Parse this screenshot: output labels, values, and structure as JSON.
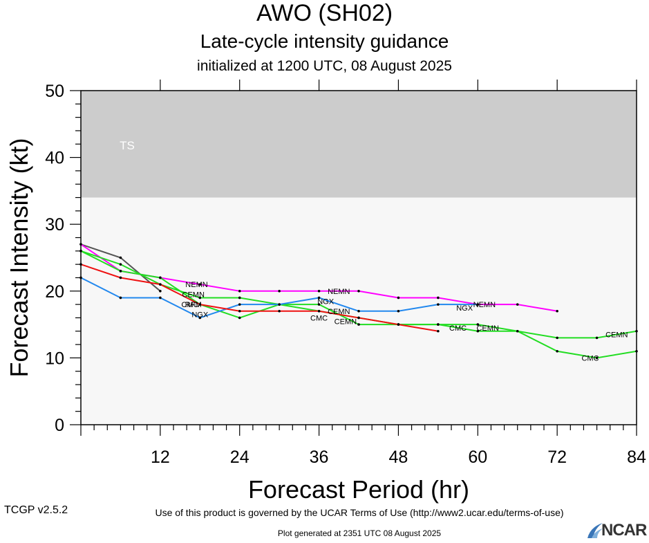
{
  "header": {
    "title": "AWO (SH02)",
    "subtitle": "Late-cycle intensity guidance",
    "init_line": "initialized at 1200 UTC, 08 August 2025"
  },
  "footer": {
    "terms": "Use of this product is governed by the UCAR Terms of Use (http://www2.ucar.edu/terms-of-use)",
    "generated": "Plot generated at 2351 UTC   08 August 2025",
    "version": "TCGP v2.5.2",
    "logo": "NCAR"
  },
  "chart_data": {
    "type": "line",
    "xlabel": "Forecast Period (hr)",
    "ylabel": "Forecast Intensity (kt)",
    "xlim": [
      0,
      84
    ],
    "ylim": [
      0,
      50
    ],
    "xticks": [
      12,
      24,
      36,
      48,
      60,
      72,
      84
    ],
    "yticks": [
      0,
      10,
      20,
      30,
      40,
      50
    ],
    "bands": [
      {
        "label": "TS",
        "from": 34,
        "to": 50,
        "color": "#cccccc"
      }
    ],
    "plot_background": "#f7f7f7",
    "series": [
      {
        "name": "",
        "color": "#555555",
        "x": [
          0,
          6,
          12
        ],
        "y": [
          27,
          25,
          20
        ]
      },
      {
        "name": "NEMN",
        "color": "#ff00ff",
        "x": [
          0,
          6,
          12,
          18,
          24,
          30,
          36,
          42,
          48,
          54,
          60,
          66,
          72
        ],
        "y": [
          27,
          23,
          22,
          21,
          20,
          20,
          20,
          20,
          19,
          19,
          18,
          18,
          17
        ]
      },
      {
        "name": "CEMN",
        "color": "#22dd22",
        "x": [
          0,
          6,
          12,
          18,
          24,
          30,
          36,
          42,
          48,
          54,
          60,
          66,
          72,
          78,
          84
        ],
        "y": [
          26,
          24,
          21,
          19,
          19,
          18,
          17,
          16,
          15,
          15,
          15,
          14,
          13,
          13,
          14
        ]
      },
      {
        "name": "CMC",
        "color": "#22dd22",
        "x": [
          0,
          6,
          12,
          18,
          24,
          30,
          36,
          42,
          48,
          54,
          60,
          66,
          72,
          78,
          84
        ],
        "y": [
          26,
          23,
          22,
          18,
          16,
          18,
          18,
          15,
          15,
          15,
          14,
          14,
          11,
          10,
          11
        ]
      },
      {
        "name": "NGX",
        "color": "#2288ee",
        "x": [
          0,
          6,
          12,
          18,
          24,
          30,
          36,
          42,
          48,
          54,
          60
        ],
        "y": [
          22,
          19,
          19,
          16,
          18,
          18,
          19,
          17,
          17,
          18,
          18
        ]
      },
      {
        "name": "",
        "color": "#ee1111",
        "x": [
          0,
          6,
          12,
          18,
          24,
          30,
          36,
          42,
          48,
          54
        ],
        "y": [
          24,
          22,
          21,
          18,
          17,
          17,
          17,
          16,
          15,
          14
        ]
      }
    ],
    "labels": [
      {
        "text": "NEMN",
        "x": 17.5,
        "y": 21
      },
      {
        "text": "NEMN",
        "x": 39,
        "y": 20
      },
      {
        "text": "NEMN",
        "x": 61,
        "y": 18
      },
      {
        "text": "CEMN",
        "x": 17,
        "y": 19.5
      },
      {
        "text": "CEMN",
        "x": 39,
        "y": 17
      },
      {
        "text": "CEMN",
        "x": 61.5,
        "y": 14.5
      },
      {
        "text": "CEMN",
        "x": 81,
        "y": 13.5
      },
      {
        "text": "CEMN",
        "x": 40,
        "y": 15.5
      },
      {
        "text": "CMC",
        "x": 16.5,
        "y": 18
      },
      {
        "text": "CMC",
        "x": 36,
        "y": 16
      },
      {
        "text": "CMC",
        "x": 57,
        "y": 14.5
      },
      {
        "text": "CMC",
        "x": 77,
        "y": 10
      },
      {
        "text": "NGX",
        "x": 18,
        "y": 16.5
      },
      {
        "text": "NGX",
        "x": 37,
        "y": 18.5
      },
      {
        "text": "NGX",
        "x": 58,
        "y": 17.5
      },
      {
        "text": "RFM",
        "x": 17,
        "y": 18
      }
    ]
  }
}
